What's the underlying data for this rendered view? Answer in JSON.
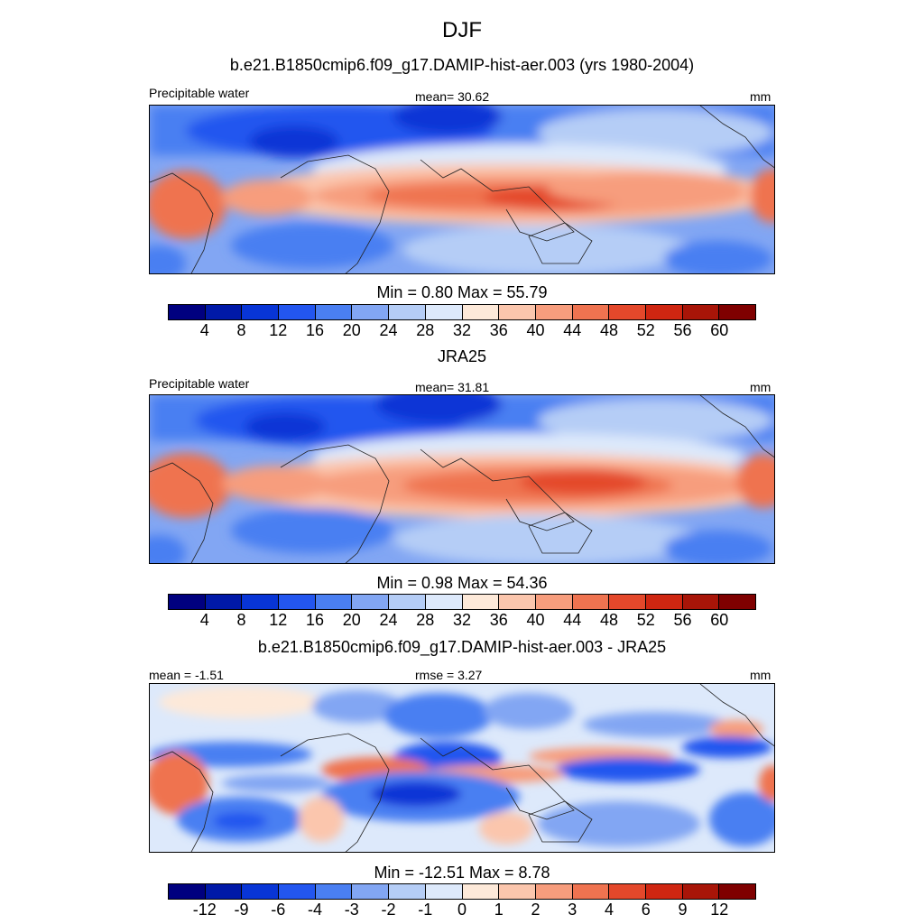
{
  "title": "DJF",
  "colors": [
    "#00007f",
    "#0019a8",
    "#0835d6",
    "#2356ef",
    "#4a7ff2",
    "#82a6f3",
    "#b5cdf6",
    "#dde9fb",
    "#fde9d9",
    "#fbc6ad",
    "#f79d7d",
    "#ef7350",
    "#e4482b",
    "#cf2611",
    "#a81508",
    "#7f0000"
  ],
  "panels": [
    {
      "heading": "b.e21.B1850cmip6.f09_g17.DAMIP-hist-aer.003 (yrs 1980-2004)",
      "left_label": "Precipitable water",
      "center_label": "mean=  30.62",
      "right_label": "mm",
      "min_max": "Min =   0.80 Max =  55.79",
      "ticks": [
        "4",
        "8",
        "12",
        "16",
        "20",
        "24",
        "28",
        "32",
        "36",
        "40",
        "44",
        "48",
        "52",
        "56",
        "60"
      ]
    },
    {
      "heading": "JRA25",
      "left_label": "Precipitable water",
      "center_label": "mean=  31.81",
      "right_label": "mm",
      "min_max": "Min =   0.98 Max =  54.36",
      "ticks": [
        "4",
        "8",
        "12",
        "16",
        "20",
        "24",
        "28",
        "32",
        "36",
        "40",
        "44",
        "48",
        "52",
        "56",
        "60"
      ]
    },
    {
      "heading": "b.e21.B1850cmip6.f09_g17.DAMIP-hist-aer.003 - JRA25",
      "left_label": "mean =  -1.51",
      "center_label": "rmse =   3.27",
      "right_label": "mm",
      "min_max": "Min = -12.51 Max =   8.78",
      "ticks": [
        "-12",
        "-9",
        "-6",
        "-4",
        "-3",
        "-2",
        "-1",
        "0",
        "1",
        "2",
        "3",
        "4",
        "6",
        "9",
        "12"
      ]
    }
  ]
}
